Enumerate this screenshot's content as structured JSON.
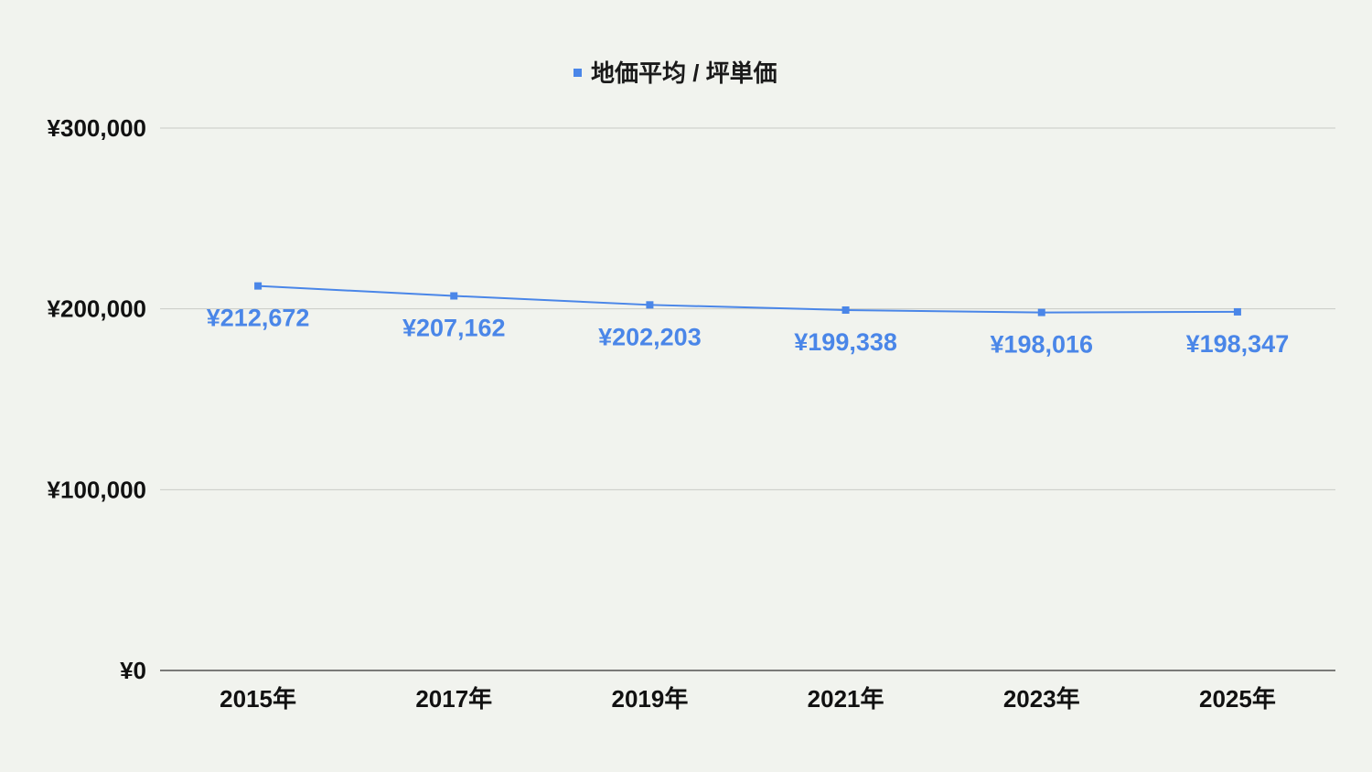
{
  "chart_data": {
    "type": "line",
    "title": "",
    "xlabel": "",
    "ylabel": "",
    "categories": [
      "2015年",
      "2017年",
      "2019年",
      "2021年",
      "2023年",
      "2025年"
    ],
    "series": [
      {
        "name": "地価平均 / 坪単価",
        "values": [
          212672,
          207162,
          202203,
          199338,
          198016,
          198347
        ],
        "labels": [
          "¥212,672",
          "¥207,162",
          "¥202,203",
          "¥199,338",
          "¥198,016",
          "¥198,347"
        ],
        "color": "#4a86e8"
      }
    ],
    "ylim": [
      0,
      300000
    ],
    "yticks": [
      {
        "value": 0,
        "label": "¥0"
      },
      {
        "value": 100000,
        "label": "¥100,000"
      },
      {
        "value": 200000,
        "label": "¥200,000"
      },
      {
        "value": 300000,
        "label": "¥300,000"
      }
    ],
    "grid": true,
    "legend_position": "top-center",
    "background": "#f1f3ee"
  }
}
